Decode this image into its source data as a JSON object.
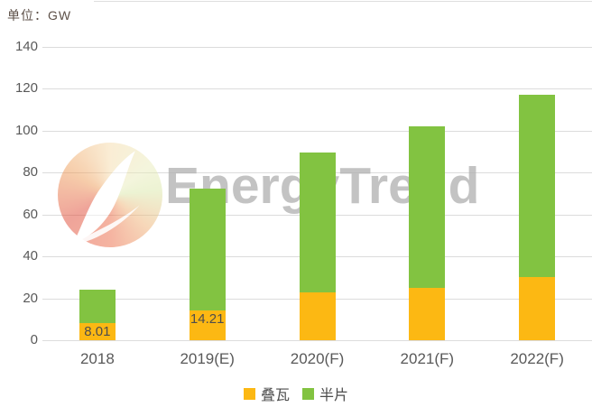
{
  "page": {
    "unit_label": "单位：GW"
  },
  "watermark": {
    "text": "EnergyTrend"
  },
  "legend": {
    "items": [
      {
        "label": "叠瓦",
        "color": "#FCB813"
      },
      {
        "label": "半片",
        "color": "#82C341"
      }
    ]
  },
  "chart_data": {
    "type": "bar",
    "stacked": true,
    "title": "",
    "unit": "GW",
    "categories": [
      "2018",
      "2019(E)",
      "2020(F)",
      "2021(F)",
      "2022(F)"
    ],
    "series": [
      {
        "name": "叠瓦",
        "color": "#FCB813",
        "values": [
          8.01,
          14.21,
          23,
          25,
          30
        ],
        "point_labels": [
          "8.01",
          "14.21",
          "",
          "",
          ""
        ]
      },
      {
        "name": "半片",
        "color": "#82C341",
        "values": [
          16,
          58,
          66.5,
          77,
          87
        ],
        "point_labels": [
          "",
          "",
          "",
          "",
          ""
        ]
      }
    ],
    "totals": [
      24.01,
      72.21,
      89.5,
      102,
      117
    ],
    "ylim": [
      0,
      140
    ],
    "yticks": [
      0,
      20,
      40,
      60,
      80,
      100,
      120,
      140
    ],
    "grid": true,
    "legend_position": "bottom"
  }
}
